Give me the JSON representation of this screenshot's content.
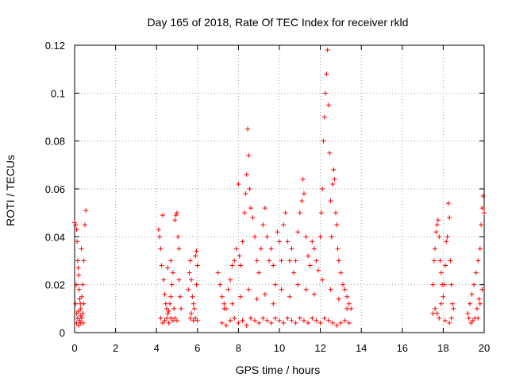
{
  "chart_data": {
    "type": "scatter",
    "title": "Day 165 of 2018, Rate Of TEC Index for receiver rkld",
    "xlabel": "GPS time / hours",
    "ylabel": "ROTI / TECUs",
    "xlim": [
      0,
      20
    ],
    "ylim": [
      0,
      0.12
    ],
    "xticks": [
      0,
      2,
      4,
      6,
      8,
      10,
      12,
      14,
      16,
      18,
      20
    ],
    "yticks": [
      0,
      0.02,
      0.04,
      0.06,
      0.08,
      0.1,
      0.12
    ],
    "xtick_labels": [
      "0",
      "2",
      "4",
      "6",
      "8",
      "10",
      "12",
      "14",
      "16",
      "18",
      "20"
    ],
    "ytick_labels": [
      "0",
      "0.02",
      "0.04",
      "0.06",
      "0.08",
      "0.1",
      "0.12"
    ],
    "grid": true,
    "marker": "+",
    "color": "#ff0000",
    "series": [
      {
        "name": "ROTI",
        "points": [
          [
            0.0,
            0.046
          ],
          [
            0.05,
            0.045
          ],
          [
            0.1,
            0.043
          ],
          [
            0.12,
            0.038
          ],
          [
            0.15,
            0.03
          ],
          [
            0.18,
            0.027
          ],
          [
            0.2,
            0.024
          ],
          [
            0.22,
            0.018
          ],
          [
            0.25,
            0.014
          ],
          [
            0.28,
            0.012
          ],
          [
            0.3,
            0.01
          ],
          [
            0.05,
            0.012
          ],
          [
            0.1,
            0.008
          ],
          [
            0.15,
            0.006
          ],
          [
            0.2,
            0.009
          ],
          [
            0.25,
            0.005
          ],
          [
            0.3,
            0.007
          ],
          [
            0.35,
            0.015
          ],
          [
            0.4,
            0.02
          ],
          [
            0.45,
            0.03
          ],
          [
            0.5,
            0.045
          ],
          [
            0.55,
            0.051
          ],
          [
            0.45,
            0.012
          ],
          [
            0.4,
            0.008
          ],
          [
            0.35,
            0.006
          ],
          [
            0.1,
            0.004
          ],
          [
            0.2,
            0.003
          ],
          [
            0.3,
            0.004
          ],
          [
            0.42,
            0.004
          ],
          [
            0.08,
            0.02
          ],
          [
            0.33,
            0.035
          ],
          [
            4.1,
            0.043
          ],
          [
            4.15,
            0.04
          ],
          [
            4.2,
            0.035
          ],
          [
            4.25,
            0.028
          ],
          [
            4.3,
            0.049
          ],
          [
            4.35,
            0.022
          ],
          [
            4.4,
            0.016
          ],
          [
            4.45,
            0.012
          ],
          [
            4.5,
            0.01
          ],
          [
            4.55,
            0.008
          ],
          [
            4.6,
            0.009
          ],
          [
            4.65,
            0.012
          ],
          [
            4.7,
            0.015
          ],
          [
            4.75,
            0.02
          ],
          [
            4.8,
            0.025
          ],
          [
            4.85,
            0.01
          ],
          [
            4.9,
            0.047
          ],
          [
            4.95,
            0.049
          ],
          [
            5.0,
            0.05
          ],
          [
            5.05,
            0.04
          ],
          [
            5.1,
            0.035
          ],
          [
            5.15,
            0.015
          ],
          [
            5.2,
            0.01
          ],
          [
            5.1,
            0.022
          ],
          [
            4.2,
            0.006
          ],
          [
            4.3,
            0.004
          ],
          [
            4.4,
            0.005
          ],
          [
            4.5,
            0.006
          ],
          [
            4.6,
            0.004
          ],
          [
            4.7,
            0.006
          ],
          [
            4.8,
            0.005
          ],
          [
            4.9,
            0.006
          ],
          [
            5.0,
            0.005
          ],
          [
            4.7,
            0.03
          ],
          [
            4.55,
            0.027
          ],
          [
            5.55,
            0.018
          ],
          [
            5.6,
            0.025
          ],
          [
            5.65,
            0.03
          ],
          [
            5.7,
            0.022
          ],
          [
            5.75,
            0.015
          ],
          [
            5.8,
            0.012
          ],
          [
            5.85,
            0.01
          ],
          [
            5.9,
            0.032
          ],
          [
            5.95,
            0.034
          ],
          [
            6.0,
            0.028
          ],
          [
            5.7,
            0.008
          ],
          [
            5.8,
            0.005
          ],
          [
            5.9,
            0.006
          ],
          [
            6.0,
            0.005
          ],
          [
            5.65,
            0.006
          ],
          [
            5.95,
            0.02
          ],
          [
            7.0,
            0.025
          ],
          [
            7.1,
            0.02
          ],
          [
            7.2,
            0.015
          ],
          [
            7.3,
            0.012
          ],
          [
            7.4,
            0.01
          ],
          [
            7.5,
            0.018
          ],
          [
            7.6,
            0.022
          ],
          [
            7.7,
            0.028
          ],
          [
            7.8,
            0.03
          ],
          [
            7.9,
            0.035
          ],
          [
            8.0,
            0.062
          ],
          [
            8.05,
            0.032
          ],
          [
            8.1,
            0.028
          ],
          [
            8.2,
            0.038
          ],
          [
            8.3,
            0.05
          ],
          [
            8.35,
            0.058
          ],
          [
            8.4,
            0.066
          ],
          [
            8.45,
            0.085
          ],
          [
            8.5,
            0.074
          ],
          [
            8.55,
            0.06
          ],
          [
            8.6,
            0.052
          ],
          [
            8.7,
            0.048
          ],
          [
            8.8,
            0.04
          ],
          [
            8.9,
            0.03
          ],
          [
            9.0,
            0.025
          ],
          [
            9.1,
            0.035
          ],
          [
            9.2,
            0.045
          ],
          [
            9.3,
            0.052
          ],
          [
            9.4,
            0.04
          ],
          [
            9.5,
            0.03
          ],
          [
            9.6,
            0.035
          ],
          [
            9.7,
            0.028
          ],
          [
            9.8,
            0.02
          ],
          [
            9.9,
            0.042
          ],
          [
            10.0,
            0.038
          ],
          [
            10.1,
            0.03
          ],
          [
            10.2,
            0.045
          ],
          [
            10.3,
            0.05
          ],
          [
            10.4,
            0.038
          ],
          [
            10.5,
            0.03
          ],
          [
            10.6,
            0.035
          ],
          [
            10.7,
            0.025
          ],
          [
            10.8,
            0.03
          ],
          [
            10.9,
            0.042
          ],
          [
            11.0,
            0.05
          ],
          [
            11.1,
            0.055
          ],
          [
            11.15,
            0.064
          ],
          [
            11.2,
            0.058
          ],
          [
            11.3,
            0.04
          ],
          [
            11.4,
            0.032
          ],
          [
            11.5,
            0.028
          ],
          [
            11.6,
            0.038
          ],
          [
            11.7,
            0.035
          ],
          [
            11.8,
            0.03
          ],
          [
            11.9,
            0.026
          ],
          [
            12.0,
            0.04
          ],
          [
            12.05,
            0.05
          ],
          [
            12.1,
            0.06
          ],
          [
            12.15,
            0.08
          ],
          [
            12.2,
            0.09
          ],
          [
            12.25,
            0.1
          ],
          [
            12.3,
            0.108
          ],
          [
            12.35,
            0.118
          ],
          [
            12.4,
            0.095
          ],
          [
            12.45,
            0.075
          ],
          [
            12.5,
            0.055
          ],
          [
            12.55,
            0.04
          ],
          [
            12.6,
            0.062
          ],
          [
            12.65,
            0.068
          ],
          [
            12.7,
            0.064
          ],
          [
            12.75,
            0.05
          ],
          [
            12.8,
            0.045
          ],
          [
            12.85,
            0.035
          ],
          [
            12.9,
            0.03
          ],
          [
            13.0,
            0.025
          ],
          [
            13.1,
            0.02
          ],
          [
            13.2,
            0.018
          ],
          [
            13.3,
            0.015
          ],
          [
            13.4,
            0.012
          ],
          [
            13.5,
            0.01
          ],
          [
            7.2,
            0.004
          ],
          [
            7.4,
            0.003
          ],
          [
            7.6,
            0.005
          ],
          [
            7.8,
            0.006
          ],
          [
            8.0,
            0.004
          ],
          [
            8.2,
            0.005
          ],
          [
            8.4,
            0.003
          ],
          [
            8.6,
            0.006
          ],
          [
            8.8,
            0.005
          ],
          [
            9.0,
            0.004
          ],
          [
            9.2,
            0.006
          ],
          [
            9.4,
            0.005
          ],
          [
            9.6,
            0.004
          ],
          [
            9.8,
            0.006
          ],
          [
            10.0,
            0.005
          ],
          [
            10.2,
            0.004
          ],
          [
            10.4,
            0.006
          ],
          [
            10.6,
            0.005
          ],
          [
            10.8,
            0.004
          ],
          [
            11.0,
            0.006
          ],
          [
            11.2,
            0.005
          ],
          [
            11.4,
            0.004
          ],
          [
            11.6,
            0.006
          ],
          [
            11.8,
            0.005
          ],
          [
            12.0,
            0.004
          ],
          [
            12.2,
            0.006
          ],
          [
            12.4,
            0.005
          ],
          [
            12.6,
            0.004
          ],
          [
            12.8,
            0.003
          ],
          [
            13.0,
            0.004
          ],
          [
            13.2,
            0.005
          ],
          [
            13.4,
            0.004
          ],
          [
            7.3,
            0.01
          ],
          [
            7.7,
            0.012
          ],
          [
            8.1,
            0.015
          ],
          [
            8.5,
            0.018
          ],
          [
            8.9,
            0.014
          ],
          [
            9.3,
            0.016
          ],
          [
            9.7,
            0.012
          ],
          [
            10.1,
            0.018
          ],
          [
            10.5,
            0.015
          ],
          [
            10.9,
            0.02
          ],
          [
            11.3,
            0.018
          ],
          [
            11.7,
            0.016
          ],
          [
            12.1,
            0.022
          ],
          [
            12.5,
            0.018
          ],
          [
            12.9,
            0.014
          ],
          [
            13.3,
            0.01
          ],
          [
            17.5,
            0.02
          ],
          [
            17.55,
            0.03
          ],
          [
            17.6,
            0.035
          ],
          [
            17.65,
            0.042
          ],
          [
            17.7,
            0.045
          ],
          [
            17.75,
            0.047
          ],
          [
            17.8,
            0.04
          ],
          [
            17.85,
            0.03
          ],
          [
            17.9,
            0.025
          ],
          [
            17.95,
            0.02
          ],
          [
            17.6,
            0.01
          ],
          [
            17.7,
            0.008
          ],
          [
            17.8,
            0.006
          ],
          [
            17.9,
            0.012
          ],
          [
            18.0,
            0.015
          ],
          [
            18.05,
            0.02
          ],
          [
            18.1,
            0.028
          ],
          [
            18.15,
            0.038
          ],
          [
            18.2,
            0.04
          ],
          [
            18.25,
            0.054
          ],
          [
            18.3,
            0.048
          ],
          [
            18.35,
            0.03
          ],
          [
            18.4,
            0.02
          ],
          [
            18.45,
            0.012
          ],
          [
            18.5,
            0.01
          ],
          [
            18.1,
            0.005
          ],
          [
            18.3,
            0.004
          ],
          [
            18.4,
            0.006
          ],
          [
            17.5,
            0.008
          ],
          [
            19.2,
            0.008
          ],
          [
            19.3,
            0.012
          ],
          [
            19.4,
            0.016
          ],
          [
            19.5,
            0.02
          ],
          [
            19.6,
            0.025
          ],
          [
            19.7,
            0.03
          ],
          [
            19.8,
            0.035
          ],
          [
            19.85,
            0.045
          ],
          [
            19.9,
            0.052
          ],
          [
            19.95,
            0.057
          ],
          [
            20.0,
            0.05
          ],
          [
            19.75,
            0.014
          ],
          [
            19.65,
            0.01
          ],
          [
            19.55,
            0.006
          ],
          [
            19.45,
            0.005
          ],
          [
            19.35,
            0.004
          ],
          [
            19.25,
            0.006
          ],
          [
            19.9,
            0.018
          ],
          [
            19.8,
            0.012
          ],
          [
            19.7,
            0.006
          ]
        ]
      }
    ]
  }
}
